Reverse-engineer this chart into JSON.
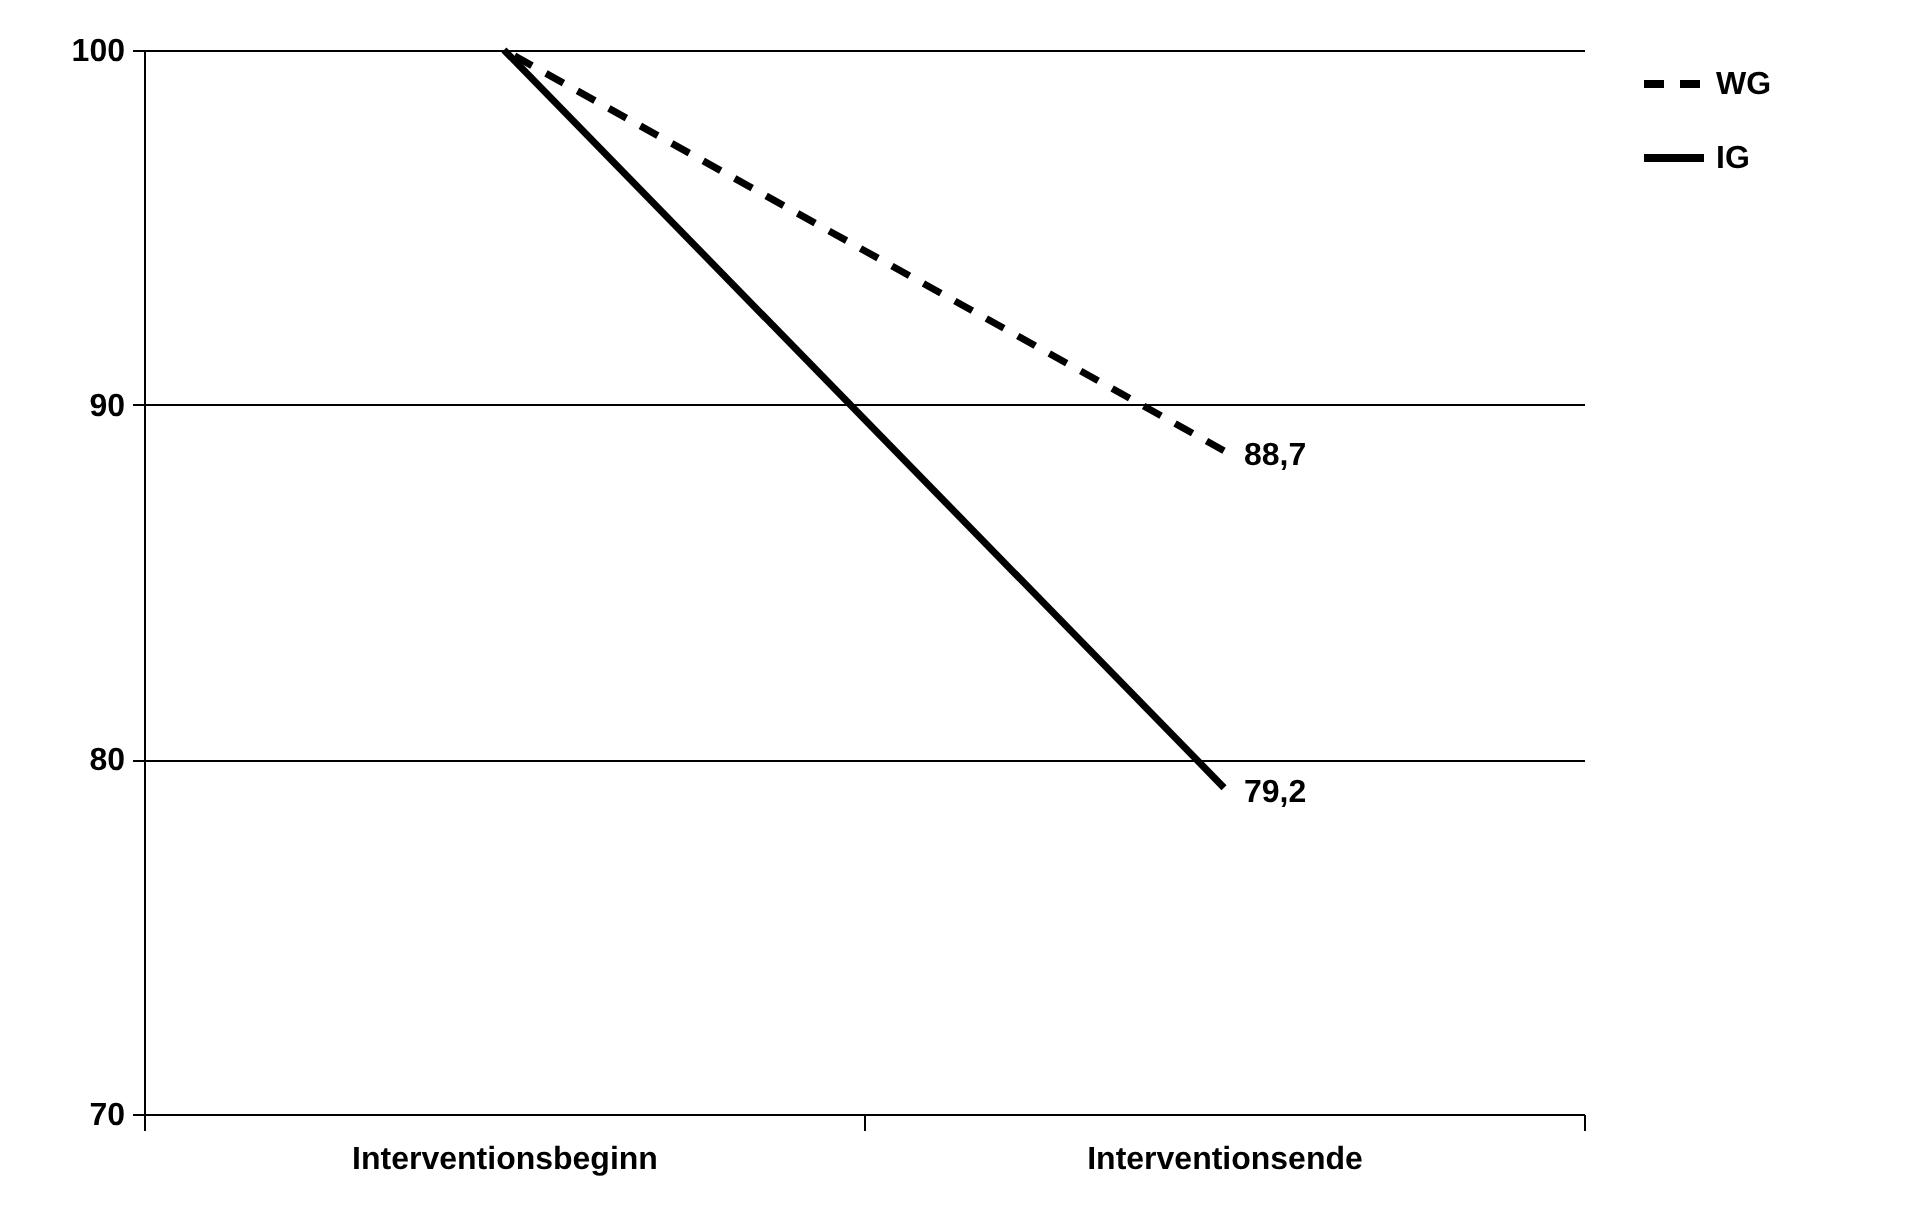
{
  "chart_data": {
    "type": "line",
    "categories": [
      "Interventionsbeginn",
      "Interventionsende"
    ],
    "series": [
      {
        "name": "WG",
        "color": "#000000",
        "line_style": "dashed",
        "values": [
          100,
          88.7
        ],
        "value_labels": [
          null,
          "88,7"
        ]
      },
      {
        "name": "IG",
        "color": "#000000",
        "line_style": "solid",
        "values": [
          100,
          79.2
        ],
        "value_labels": [
          null,
          "79,2"
        ]
      }
    ],
    "ylim": [
      70,
      100
    ],
    "yticks": [
      70,
      80,
      90,
      100
    ],
    "grid": "y",
    "legend": "right",
    "marker": "none"
  }
}
